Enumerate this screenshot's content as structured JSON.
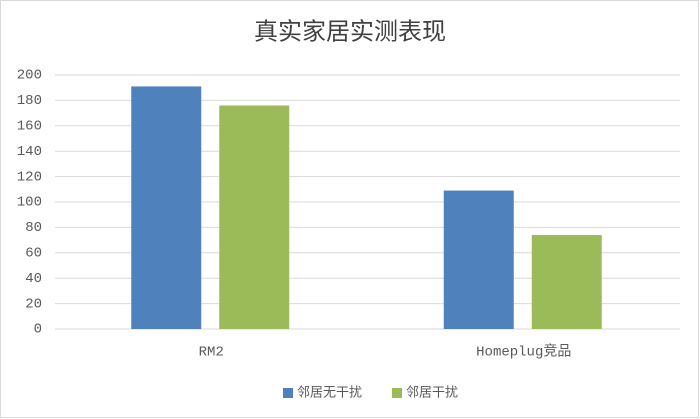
{
  "chart_data": {
    "type": "bar",
    "title": "真实家居实测表现",
    "categories": [
      "RM2",
      "Homeplug竞品"
    ],
    "series": [
      {
        "name": "邻居无干扰",
        "color": "#4f81bd",
        "values": [
          191,
          109
        ]
      },
      {
        "name": "邻居干扰",
        "color": "#9bbb59",
        "values": [
          176,
          74
        ]
      }
    ],
    "ylim": [
      0,
      200
    ],
    "yticks": [
      0,
      20,
      40,
      60,
      80,
      100,
      120,
      140,
      160,
      180,
      200
    ],
    "grid": true,
    "legend": "bottom"
  }
}
